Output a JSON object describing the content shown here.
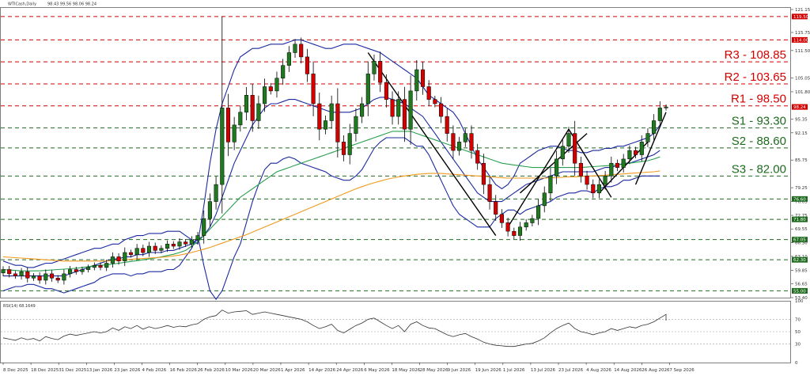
{
  "chart_data": {
    "type": "candlestick",
    "symbol_label": "WTICash,Daily",
    "ohlc_label": "98.43 99.56 98.06 98.24",
    "price_axis": {
      "min": 53.4,
      "max": 121.15,
      "ticks": [
        121.15,
        115.75,
        111.5,
        105.05,
        101.8,
        95.35,
        92.15,
        85.75,
        79.25,
        76.05,
        72.75,
        69.55,
        66.3,
        63.1,
        59.85,
        56.65,
        53.4
      ]
    },
    "rsi_axis": {
      "min": 0,
      "max": 100,
      "ticks": [
        100,
        70,
        50,
        30,
        0
      ]
    },
    "rsi_label": "RSI(14) 68.1649",
    "x_ticks": [
      "8 Dec 2025",
      "18 Dec 2025",
      "31 Dec 2025",
      "13 Jan 2026",
      "23 Jan 2026",
      "4 Feb 2026",
      "16 Feb 2026",
      "26 Feb 2026",
      "10 Mar 2026",
      "20 Mar 2026",
      "1 Apr 2026",
      "14 Apr 2026",
      "24 Apr 2026",
      "6 May 2026",
      "18 May 2026",
      "28 May 2026",
      "9 Jun 2026",
      "19 Jun 2026",
      "1 Jul 2026",
      "13 Jul 2026",
      "23 Jul 2026",
      "4 Aug 2026",
      "14 Aug 2026",
      "26 Aug 2026",
      "7 Sep 2026"
    ],
    "levels": [
      {
        "name": "R3",
        "label": "R3 - 108.85",
        "value": 108.85,
        "color": "#d40000"
      },
      {
        "name": "R2",
        "label": "R2 - 103.65",
        "value": 103.65,
        "color": "#d40000"
      },
      {
        "name": "R1",
        "label": "R1 - 98.50",
        "value": 98.5,
        "color": "#d40000"
      },
      {
        "name": "S1",
        "label": "S1 - 93.30",
        "value": 93.3,
        "color": "#1e6b1e"
      },
      {
        "name": "S2",
        "label": "S2 - 88.60",
        "value": 88.6,
        "color": "#1e6b1e"
      },
      {
        "name": "S3",
        "label": "S3 - 82.00",
        "value": 82.0,
        "color": "#1e6b1e"
      }
    ],
    "extra_lines": [
      {
        "value": 119.5,
        "tag": "119.50",
        "color": "#d40000"
      },
      {
        "value": 114.0,
        "tag": "114.00",
        "color": "#d40000"
      },
      {
        "value": 76.6,
        "tag": "76.60",
        "color": "#1e6b1e"
      },
      {
        "value": 71.8,
        "tag": "71.80",
        "color": "#1e6b1e"
      },
      {
        "value": 67.05,
        "tag": "67.05",
        "color": "#1e6b1e"
      },
      {
        "value": 62.3,
        "tag": "62.30",
        "color": "#1e6b1e"
      },
      {
        "value": 55.0,
        "tag": "55.00",
        "color": "#1e6b1e"
      }
    ],
    "close_path": [
      60,
      59,
      58.5,
      59.5,
      58,
      58.5,
      57.5,
      59,
      58,
      57.5,
      59,
      60,
      59.5,
      60,
      60.5,
      61,
      60.5,
      61.5,
      63,
      62,
      64,
      63.5,
      65,
      64,
      65.5,
      64.5,
      65,
      66,
      65.5,
      66.5,
      66,
      67,
      68,
      72,
      76,
      80,
      98,
      90,
      94,
      97,
      101,
      95,
      99,
      103,
      102,
      105,
      108,
      111,
      113,
      110,
      106,
      99,
      93,
      95,
      99,
      90,
      87,
      92,
      96,
      99,
      106,
      109,
      104,
      100,
      96,
      100,
      93,
      102,
      107,
      103,
      100,
      99,
      96,
      92,
      88,
      90,
      92,
      88,
      85,
      80,
      76,
      73,
      71,
      69,
      68,
      70,
      71,
      72,
      75,
      78,
      82,
      86,
      89,
      92,
      85,
      82,
      80,
      78,
      80,
      82,
      85,
      84,
      86,
      88,
      87,
      90,
      92,
      95,
      98,
      98.24
    ],
    "series": [
      {
        "name": "bb_upper",
        "color": "#1c2aa0",
        "values": [
          62,
          61.5,
          61,
          61,
          60.5,
          60.5,
          61,
          61.5,
          61.5,
          62,
          62.5,
          63,
          63.5,
          64,
          64.5,
          65,
          65,
          65.5,
          66,
          66,
          67,
          67.5,
          68,
          68,
          68.5,
          68.5,
          68.5,
          69,
          69,
          69,
          68,
          67,
          66,
          75,
          85,
          93,
          99,
          103,
          107,
          110,
          111,
          112,
          112,
          112.5,
          113,
          113,
          113,
          113.5,
          114,
          114,
          113.5,
          113,
          112.5,
          112,
          112,
          112.5,
          113,
          113,
          113,
          112.5,
          112,
          111.5,
          111,
          110,
          109,
          108,
          107,
          106,
          105,
          103,
          101,
          100,
          99,
          98,
          97,
          95,
          92,
          89,
          86,
          84,
          82,
          80,
          79,
          80,
          82,
          85,
          86,
          87,
          88,
          88.5,
          89,
          89,
          88.5,
          88,
          88,
          87.5,
          87.5,
          88,
          88,
          88.5,
          88.5,
          89,
          89,
          89.5,
          90,
          90.5,
          91,
          92,
          94
        ]
      },
      {
        "name": "bb_mid",
        "color": "#1c2aa0",
        "values": [
          58.5,
          58.5,
          58.5,
          58.5,
          58.5,
          58.5,
          58.5,
          58.5,
          58.5,
          58.5,
          58.5,
          59,
          59.5,
          60,
          60.5,
          61,
          61.5,
          62,
          62.5,
          62.5,
          63,
          63,
          63.5,
          63.5,
          64,
          64,
          64,
          64.5,
          64.5,
          65,
          65.5,
          66,
          67,
          68,
          70,
          73,
          77,
          81,
          85,
          88,
          91,
          94,
          96,
          98,
          99,
          99,
          99.5,
          100,
          100,
          99.5,
          99,
          98.5,
          98,
          97.5,
          97,
          97,
          97,
          97,
          97.5,
          98,
          99,
          100,
          100.5,
          100.5,
          100,
          99.5,
          99,
          98,
          97,
          96,
          94,
          92,
          90,
          88,
          86,
          84,
          82,
          80,
          78,
          77,
          76,
          76,
          76,
          77,
          78,
          79,
          80,
          80.5,
          81,
          81.5,
          82,
          82.5,
          83,
          83,
          83,
          83,
          83,
          83,
          83.5,
          84,
          84,
          84.5,
          85,
          85,
          85.5,
          86,
          86.5,
          87,
          88
        ]
      },
      {
        "name": "bb_lower",
        "color": "#1c2aa0",
        "values": [
          55,
          55.5,
          56,
          56,
          56.5,
          56.5,
          56,
          55.5,
          55.5,
          55,
          54.5,
          55,
          55.5,
          56,
          56.5,
          57,
          58,
          58.5,
          59,
          59,
          59,
          58.5,
          59,
          59,
          59.5,
          59.5,
          59.5,
          60,
          60,
          61,
          63,
          65,
          68,
          61,
          55,
          53,
          55,
          59,
          63,
          66,
          71,
          76,
          80,
          83.5,
          85,
          85,
          86,
          86.5,
          86,
          85,
          84.5,
          84,
          83.5,
          83,
          82,
          81.5,
          81,
          81,
          82,
          83.5,
          86,
          88.5,
          90,
          91,
          91,
          91,
          91,
          90,
          89,
          89,
          87,
          84,
          81,
          78,
          75,
          73,
          72,
          71,
          70,
          70,
          70,
          72,
          73,
          74,
          74,
          73,
          74,
          74.5,
          75,
          75.5,
          76,
          77,
          77.5,
          78,
          78,
          78.5,
          78.5,
          78,
          79,
          79.5,
          79.5,
          80,
          81,
          81,
          81.5,
          82,
          82,
          82,
          82
        ]
      },
      {
        "name": "ma_green",
        "color": "#2aa050",
        "values": [
          60,
          59.9,
          59.8,
          59.7,
          59.7,
          59.7,
          59.7,
          59.8,
          59.9,
          60,
          60.1,
          60.2,
          60.3,
          60.5,
          60.7,
          60.9,
          61,
          61.1,
          61.3,
          61.5,
          61.7,
          61.9,
          62.1,
          62.3,
          62.5,
          62.7,
          63,
          63.3,
          63.6,
          64,
          64.5,
          65.5,
          66.5,
          68,
          69.5,
          71,
          72.5,
          74,
          75.5,
          77,
          78,
          79,
          80,
          81,
          82,
          83,
          83.5,
          84,
          84.5,
          85,
          85.5,
          86,
          86.5,
          87,
          87.5,
          88,
          88.5,
          89,
          89.5,
          90,
          90.5,
          91,
          91.5,
          92,
          92.5,
          92.5,
          92.5,
          92.5,
          92,
          91.5,
          91,
          90.5,
          90,
          89.5,
          89,
          88.5,
          88,
          87.5,
          87,
          86.5,
          86,
          85.5,
          85,
          84.8,
          84.6,
          84.4,
          84.2,
          84,
          84,
          84,
          84,
          84,
          84,
          84,
          84,
          84,
          84.1,
          84.2,
          84.3,
          84.4,
          84.5,
          84.6,
          84.8,
          85,
          85.2,
          85.4,
          85.6,
          86,
          86.5
        ]
      },
      {
        "name": "ma_orange",
        "color": "#f09a1e",
        "values": [
          63,
          62.9,
          62.8,
          62.7,
          62.6,
          62.5,
          62.4,
          62.3,
          62.2,
          62.1,
          62,
          62,
          62,
          62,
          62,
          62,
          62,
          62,
          62.1,
          62.2,
          62.3,
          62.4,
          62.5,
          62.6,
          62.7,
          62.8,
          62.9,
          63,
          63.2,
          63.4,
          63.7,
          64,
          64.4,
          64.8,
          65.2,
          65.7,
          66.2,
          66.7,
          67.2,
          67.7,
          68.2,
          68.8,
          69.4,
          70,
          70.6,
          71.2,
          71.8,
          72.4,
          73,
          73.6,
          74.2,
          74.8,
          75.4,
          76,
          76.6,
          77.2,
          77.8,
          78.4,
          79,
          79.5,
          80,
          80.4,
          80.8,
          81.2,
          81.5,
          81.8,
          82,
          82.2,
          82.4,
          82.5,
          82.6,
          82.6,
          82.6,
          82.5,
          82.4,
          82.3,
          82.2,
          82.1,
          82,
          81.9,
          81.8,
          81.7,
          81.6,
          81.5,
          81.5,
          81.5,
          81.5,
          81.5,
          81.5,
          81.5,
          81.6,
          81.6,
          81.7,
          81.8,
          81.8,
          81.9,
          82,
          82,
          82.1,
          82.2,
          82.3,
          82.4,
          82.5,
          82.6,
          82.7,
          82.8,
          82.9,
          83,
          83.2
        ]
      },
      {
        "name": "rsi",
        "color": "#333333",
        "values": [
          40,
          38,
          36,
          40,
          37,
          39,
          35,
          42,
          39,
          37,
          43,
          46,
          44,
          46,
          48,
          50,
          48,
          50,
          56,
          52,
          58,
          55,
          60,
          54,
          58,
          55,
          57,
          60,
          57,
          59,
          58,
          61,
          63,
          70,
          74,
          76,
          85,
          80,
          82,
          83,
          84,
          78,
          80,
          82,
          80,
          78,
          76,
          74,
          72,
          70,
          66,
          60,
          55,
          58,
          62,
          52,
          48,
          54,
          60,
          64,
          70,
          72,
          66,
          60,
          55,
          60,
          50,
          62,
          66,
          60,
          56,
          55,
          50,
          45,
          42,
          45,
          47,
          42,
          38,
          33,
          30,
          28,
          27,
          26,
          26,
          28,
          30,
          31,
          35,
          40,
          48,
          55,
          60,
          64,
          55,
          50,
          48,
          45,
          48,
          50,
          55,
          52,
          55,
          58,
          56,
          60,
          62,
          66,
          72,
          78,
          68
        ]
      }
    ]
  }
}
